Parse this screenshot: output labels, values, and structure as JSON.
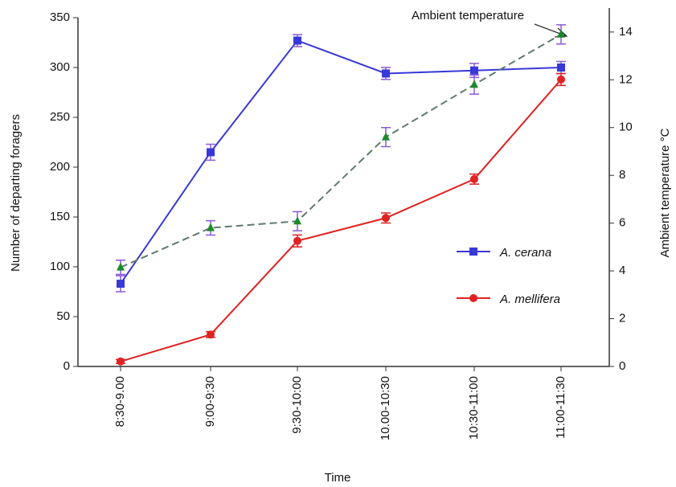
{
  "chart_data": {
    "type": "line",
    "categories": [
      "8:30-9.00",
      "9:00-9:30",
      "9:30-10:00",
      "10.00-10:30",
      "10:30-11:00",
      "11:00-11:30"
    ],
    "x_label": "Time",
    "y_label": "Number of departing foragers",
    "y2_label": "Ambient temperature °C",
    "ylim": [
      0,
      350
    ],
    "yticks": [
      0,
      50,
      100,
      150,
      200,
      250,
      300,
      350
    ],
    "y2lim": [
      0,
      14.6
    ],
    "y2ticks": [
      0,
      2,
      4,
      6,
      8,
      10,
      12,
      14
    ],
    "series": [
      {
        "name": "A. cerana",
        "color": "#3838d8",
        "marker": "square",
        "values": [
          83,
          215,
          327,
          294,
          297,
          300
        ],
        "errors": [
          8,
          8,
          6,
          6,
          7,
          6
        ]
      },
      {
        "name": "A. mellifera",
        "color": "#e02222",
        "marker": "circle",
        "values": [
          5,
          32,
          126,
          149,
          188,
          288
        ],
        "errors": [
          2,
          3,
          6,
          5,
          5,
          6
        ]
      },
      {
        "name": "Ambient temperature",
        "color": "#1a8a2a",
        "line_color": "#5f7a70",
        "dashed": true,
        "marker": "triangle",
        "axis": "y2",
        "values": [
          4.15,
          5.8,
          6.08,
          9.6,
          11.8,
          13.9
        ],
        "errors": [
          0.3,
          0.3,
          0.4,
          0.4,
          0.4,
          0.4
        ]
      }
    ]
  }
}
